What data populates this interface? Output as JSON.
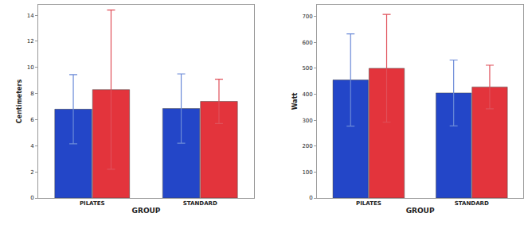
{
  "chart_data": [
    {
      "type": "bar",
      "categories": [
        "PILATES",
        "STANDARD"
      ],
      "x_label": "GROUP",
      "y_label": "Centimeters",
      "series": [
        {
          "color": "#2346c8",
          "values": [
            6.8,
            6.85
          ],
          "errors": [
            2.65,
            2.65
          ]
        },
        {
          "color": "#e3343c",
          "values": [
            8.3,
            7.4
          ],
          "errors": [
            6.1,
            1.7
          ]
        }
      ],
      "ylim": [
        0,
        14.8
      ],
      "yticks": [
        0,
        2,
        4,
        6,
        8,
        10,
        12,
        14
      ],
      "grid": false
    },
    {
      "type": "bar",
      "categories": [
        "PILATES",
        "STANDARD"
      ],
      "x_label": "GROUP",
      "y_label": "Watt",
      "series": [
        {
          "color": "#2346c8",
          "values": [
            455,
            405
          ],
          "errors": [
            178,
            127
          ]
        },
        {
          "color": "#e3343c",
          "values": [
            500,
            428
          ],
          "errors": [
            208,
            84
          ]
        }
      ],
      "ylim": [
        0,
        745
      ],
      "yticks": [
        0,
        100,
        200,
        300,
        400,
        500,
        600,
        700
      ],
      "grid": false
    }
  ]
}
